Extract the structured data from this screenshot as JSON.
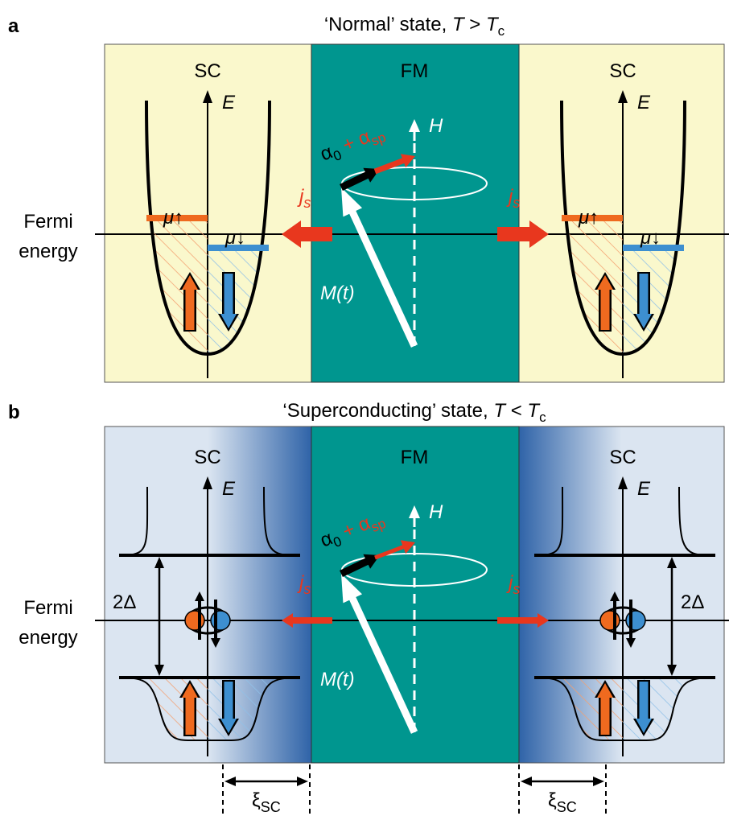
{
  "panels": [
    {
      "letter": "a",
      "title": [
        "‘Normal’ state, ",
        "T",
        " > ",
        "T",
        "c"
      ],
      "left_region": "SC",
      "middle_region": "FM",
      "right_region": "SC",
      "energy_axis": "E",
      "field": "H",
      "damping": [
        "α",
        "0",
        " + α",
        "sp"
      ],
      "spin_current": [
        "j",
        "s"
      ],
      "magnetization": "M(t)",
      "fermi_label": [
        "Fermi",
        "energy"
      ],
      "mu_up": "μ↑",
      "mu_down": "μ↓"
    },
    {
      "letter": "b",
      "title": [
        "‘Superconducting’ state, ",
        "T",
        " < ",
        "T",
        "c"
      ],
      "left_region": "SC",
      "middle_region": "FM",
      "right_region": "SC",
      "energy_axis": "E",
      "field": "H",
      "damping": [
        "α",
        "0",
        " + α",
        "sp"
      ],
      "spin_current": [
        "j",
        "s"
      ],
      "magnetization": "M(t)",
      "fermi_label": [
        "Fermi",
        "energy"
      ],
      "gap": "2Δ",
      "coherence_length": [
        "ξ",
        "SC"
      ]
    }
  ]
}
